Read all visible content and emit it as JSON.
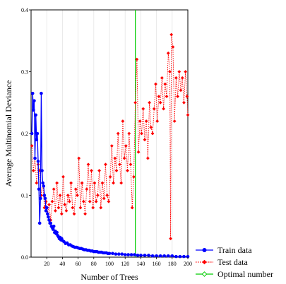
{
  "chart_data": {
    "type": "line",
    "xlabel": "Number of Trees",
    "ylabel": "Average Multinomial Deviance",
    "xlim": [
      0,
      200
    ],
    "ylim": [
      0,
      0.4
    ],
    "x_ticks": [
      20,
      40,
      60,
      80,
      100,
      120,
      140,
      160,
      180,
      200
    ],
    "x_tick_labels": [
      "20",
      "40",
      "60",
      "80",
      "100",
      "120",
      "140",
      "160",
      "180",
      "200"
    ],
    "y_ticks": [
      0,
      0.1,
      0.2,
      0.3,
      0.4
    ],
    "y_tick_labels": [
      "0.0",
      "0.1",
      "0.2",
      "0.3",
      "0.4"
    ],
    "grid": "vertical",
    "legend_position": "outside-bottom-right",
    "optimal_number": 133,
    "series": [
      {
        "name": "Train data",
        "color": "#0000ff",
        "marker": "circle",
        "line_style": "solid",
        "x": [
          1,
          2,
          3,
          4,
          5,
          6,
          7,
          8,
          9,
          10,
          11,
          12,
          13,
          14,
          15,
          16,
          17,
          18,
          19,
          20,
          21,
          22,
          23,
          24,
          25,
          26,
          27,
          28,
          29,
          30,
          31,
          32,
          33,
          34,
          35,
          36,
          37,
          38,
          39,
          40,
          42,
          44,
          46,
          48,
          50,
          52,
          54,
          56,
          58,
          60,
          62,
          64,
          66,
          68,
          70,
          72,
          74,
          76,
          78,
          80,
          82,
          84,
          86,
          88,
          90,
          92,
          94,
          96,
          98,
          100,
          104,
          108,
          112,
          116,
          120,
          124,
          128,
          132,
          136,
          140,
          145,
          150,
          155,
          160,
          165,
          170,
          175,
          180,
          185,
          190,
          195,
          200
        ],
        "y": [
          0.2,
          0.265,
          0.238,
          0.253,
          0.16,
          0.23,
          0.19,
          0.2,
          0.155,
          0.11,
          0.055,
          0.095,
          0.265,
          0.14,
          0.12,
          0.115,
          0.1,
          0.095,
          0.075,
          0.08,
          0.07,
          0.065,
          0.06,
          0.055,
          0.055,
          0.05,
          0.048,
          0.045,
          0.05,
          0.04,
          0.042,
          0.038,
          0.04,
          0.035,
          0.033,
          0.03,
          0.032,
          0.028,
          0.03,
          0.027,
          0.025,
          0.022,
          0.023,
          0.02,
          0.02,
          0.018,
          0.017,
          0.016,
          0.016,
          0.015,
          0.014,
          0.014,
          0.013,
          0.012,
          0.012,
          0.011,
          0.011,
          0.01,
          0.01,
          0.009,
          0.009,
          0.009,
          0.008,
          0.008,
          0.008,
          0.007,
          0.007,
          0.007,
          0.006,
          0.006,
          0.006,
          0.005,
          0.005,
          0.005,
          0.004,
          0.004,
          0.004,
          0.004,
          0.003,
          0.003,
          0.003,
          0.003,
          0.002,
          0.002,
          0.002,
          0.002,
          0.002,
          0.002,
          0.001,
          0.001,
          0.001,
          0.001
        ]
      },
      {
        "name": "Test data",
        "color": "#ff0000",
        "marker": "diamond",
        "line_style": "dotted",
        "x": [
          1,
          3,
          5,
          7,
          9,
          11,
          13,
          15,
          17,
          19,
          21,
          23,
          25,
          27,
          29,
          31,
          33,
          35,
          37,
          39,
          41,
          43,
          45,
          47,
          49,
          51,
          53,
          55,
          57,
          59,
          61,
          63,
          65,
          67,
          69,
          71,
          73,
          75,
          77,
          79,
          81,
          83,
          85,
          87,
          89,
          91,
          93,
          95,
          97,
          99,
          101,
          103,
          105,
          107,
          109,
          111,
          113,
          115,
          117,
          119,
          121,
          123,
          125,
          127,
          129,
          131,
          133,
          135,
          137,
          139,
          141,
          143,
          145,
          147,
          149,
          151,
          153,
          155,
          157,
          159,
          161,
          163,
          165,
          167,
          169,
          171,
          173,
          175,
          177,
          178,
          179,
          181,
          183,
          185,
          187,
          189,
          191,
          193,
          195,
          197,
          199,
          200
        ],
        "y": [
          0.18,
          0.14,
          0.16,
          0.12,
          0.15,
          0.14,
          0.1,
          0.12,
          0.08,
          0.09,
          0.07,
          0.085,
          0.06,
          0.09,
          0.11,
          0.075,
          0.12,
          0.08,
          0.1,
          0.07,
          0.13,
          0.085,
          0.075,
          0.1,
          0.09,
          0.12,
          0.08,
          0.07,
          0.11,
          0.1,
          0.16,
          0.08,
          0.12,
          0.09,
          0.07,
          0.11,
          0.15,
          0.09,
          0.14,
          0.08,
          0.12,
          0.09,
          0.1,
          0.14,
          0.08,
          0.12,
          0.095,
          0.15,
          0.1,
          0.09,
          0.13,
          0.18,
          0.12,
          0.16,
          0.14,
          0.2,
          0.15,
          0.12,
          0.22,
          0.16,
          0.18,
          0.14,
          0.2,
          0.15,
          0.08,
          0.13,
          0.25,
          0.32,
          0.17,
          0.22,
          0.2,
          0.24,
          0.19,
          0.22,
          0.16,
          0.25,
          0.21,
          0.2,
          0.24,
          0.28,
          0.22,
          0.26,
          0.25,
          0.29,
          0.24,
          0.28,
          0.26,
          0.33,
          0.3,
          0.03,
          0.36,
          0.34,
          0.22,
          0.29,
          0.26,
          0.3,
          0.27,
          0.29,
          0.25,
          0.3,
          0.26,
          0.23
        ]
      },
      {
        "name": "Optimal number",
        "color": "#00cc00",
        "marker": "diamond-open",
        "line_style": "solid"
      }
    ]
  }
}
